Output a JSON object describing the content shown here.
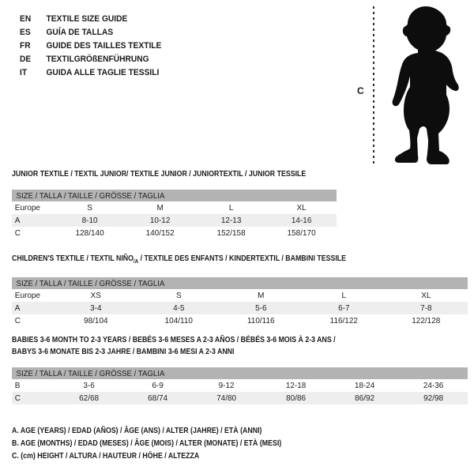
{
  "colors": {
    "header_bar": "#b3b3b3",
    "row_shaded": "#eeeeee",
    "text": "#1a1a1a",
    "silhouette": "#0d0d0d"
  },
  "header": {
    "entries": [
      {
        "code": "EN",
        "title": "TEXTILE SIZE GUIDE"
      },
      {
        "code": "ES",
        "title": "GUÍA DE TALLAS"
      },
      {
        "code": "FR",
        "title": "GUIDE DES TAILLES TEXTILE"
      },
      {
        "code": "DE",
        "title": "TEXTILGRÖßENFÜHRUNG"
      },
      {
        "code": "IT",
        "title": "GUIDA ALLE TAGLIE TESSILI"
      }
    ]
  },
  "figure": {
    "measure_label": "C",
    "icon": "toddler-silhouette-icon"
  },
  "tables": [
    {
      "title_lines": [
        [
          {
            "text": "JUNIOR TEXTILE / TEXTIL JUNIOR/ TEXTILE JUNIOR / JUNIORTEXTIL / JUNIOR TESSILE",
            "sub": false
          }
        ]
      ],
      "size_header": "SIZE / TALLA / TAILLE / GRÖSSE / TAGLIA",
      "rows": [
        {
          "shaded": false,
          "cells": [
            "Europe",
            "S",
            "M",
            "L",
            "XL"
          ]
        },
        {
          "shaded": true,
          "cells": [
            "A",
            "8-10",
            "10-12",
            "12-13",
            "14-16"
          ]
        },
        {
          "shaded": false,
          "cells": [
            "C",
            "128/140",
            "140/152",
            "152/158",
            "158/170"
          ]
        }
      ]
    },
    {
      "title_lines": [
        [
          {
            "text": "CHILDREN'S TEXTILE / TEXTIL NIÑO",
            "sub": false
          },
          {
            "text": "/A",
            "sub": true
          },
          {
            "text": " / TEXTILE DES ENFANTS / KINDERTEXTIL / BAMBINI TESSILE",
            "sub": false
          }
        ]
      ],
      "size_header": "SIZE / TALLA / TAILLE / GRÖSSE / TAGLIA",
      "rows": [
        {
          "shaded": false,
          "cells": [
            "Europe",
            "XS",
            "S",
            "M",
            "L",
            "XL"
          ]
        },
        {
          "shaded": true,
          "cells": [
            "A",
            "3-4",
            "4-5",
            "5-6",
            "6-7",
            "7-8"
          ]
        },
        {
          "shaded": false,
          "cells": [
            "C",
            "98/104",
            "104/110",
            "110/116",
            "116/122",
            "122/128"
          ]
        }
      ]
    },
    {
      "title_lines": [
        [
          {
            "text": "BABIES 3-6 MONTH TO 2-3 YEARS / BEBÉS 3-6 MESES A 2-3 AÑOS / BÉBÉS 3-6 MOIS À 2-3 ANS /",
            "sub": false
          }
        ],
        [
          {
            "text": "BABYS 3-6 MONATE BIS 2-3 JAHRE / BAMBINI 3-6 MESI A 2-3 ANNI",
            "sub": false
          }
        ]
      ],
      "size_header": "SIZE / TALLA / TAILLE / GRÖSSE / TAGLIA",
      "rows": [
        {
          "shaded": false,
          "cells": [
            "B",
            "3-6",
            "6-9",
            "9-12",
            "12-18",
            "18-24",
            "24-36"
          ]
        },
        {
          "shaded": true,
          "cells": [
            "C",
            "62/68",
            "68/74",
            "74/80",
            "80/86",
            "86/92",
            "92/98"
          ]
        }
      ]
    }
  ],
  "notes": [
    "A. AGE (YEARS) / EDAD (AÑOS) / ÂGE (ANS) / ALTER (JAHRE) / ETÀ (ANNI)",
    "B. AGE (MONTHS) / EDAD (MESES) / ÂGE (MOIS) / ALTER (MONATE) / ETÀ (MESI)",
    "C. (cm) HEIGHT / ALTURA / HAUTEUR / HÖHE / ALTEZZA"
  ]
}
